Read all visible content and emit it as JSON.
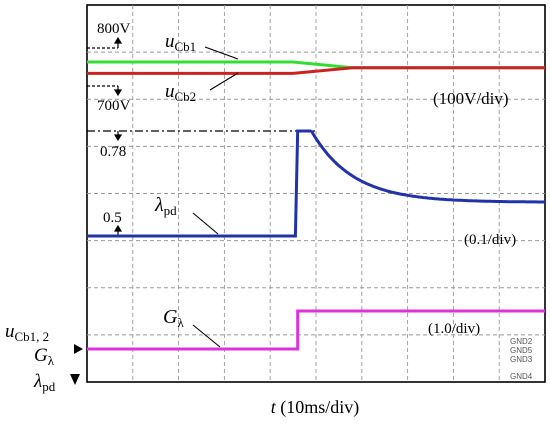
{
  "chart_data": {
    "type": "line",
    "x_unit_label": "t (10ms/div)",
    "x_divisions": 10,
    "y_divisions": 8,
    "traces": [
      {
        "name": "uCb1",
        "label_main": "u",
        "label_sub": "Cb1",
        "color": "#33dd33",
        "ref_level": "800V",
        "scale": "(100V/div)",
        "points": [
          [
            0,
            800
          ],
          [
            4.5,
            800
          ],
          [
            5.8,
            785
          ],
          [
            10,
            785
          ]
        ]
      },
      {
        "name": "uCb2",
        "label_main": "u",
        "label_sub": "Cb2",
        "color": "#cc2222",
        "ref_level": "700V",
        "points": [
          [
            0,
            770
          ],
          [
            4.5,
            770
          ],
          [
            5.8,
            785
          ],
          [
            10,
            785
          ]
        ]
      },
      {
        "name": "λpd",
        "label_main": "λ",
        "label_sub": "pd",
        "color": "#2233aa",
        "ref_level": "0.5",
        "peak_level": "0.78",
        "scale": "(0.1/div)",
        "points": [
          [
            0,
            0.5
          ],
          [
            4.55,
            0.5
          ],
          [
            4.6,
            0.78
          ],
          [
            4.9,
            0.78
          ],
          [
            10,
            0.59
          ]
        ]
      },
      {
        "name": "Gλ",
        "label_main": "G",
        "label_sub": "λ",
        "color": "#dd33dd",
        "scale": "(1.0/div)",
        "points": [
          [
            0,
            0
          ],
          [
            4.6,
            0
          ],
          [
            4.6,
            1
          ],
          [
            10,
            1
          ]
        ]
      }
    ],
    "left_axis_labels": {
      "u_main": "u",
      "u_sub": "Cb1, 2",
      "g_main": "G",
      "g_sub": "λ",
      "l_main": "λ",
      "l_sub": "pd"
    },
    "gnd_labels": [
      "GND2",
      "GND5",
      "GND3",
      "GND4"
    ]
  }
}
